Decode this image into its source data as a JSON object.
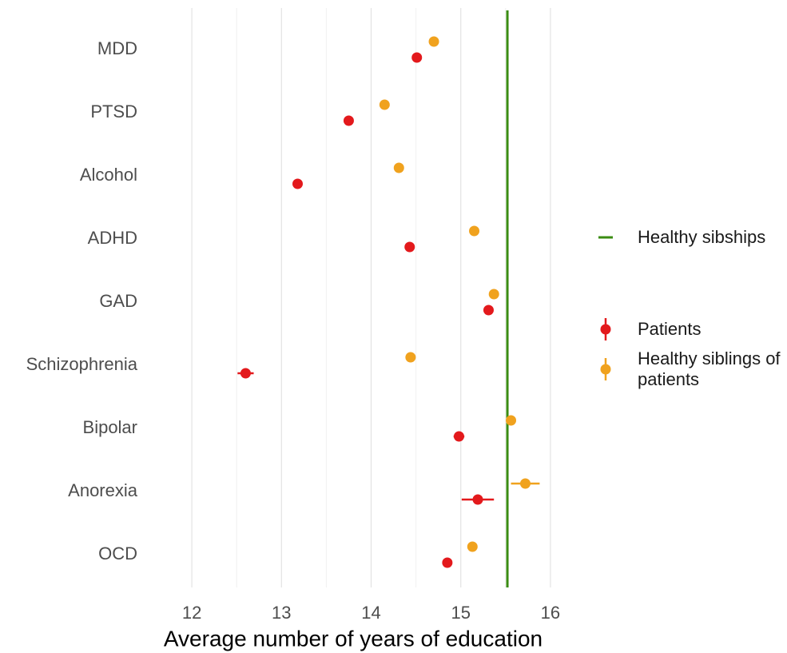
{
  "chart_data": {
    "type": "dot",
    "x_label": "Average number of years of education",
    "categories": [
      "MDD",
      "PTSD",
      "Alcohol",
      "ADHD",
      "GAD",
      "Schizophrenia",
      "Bipolar",
      "Anorexia",
      "OCD"
    ],
    "series": [
      {
        "name": "Patients",
        "color": "#e3191c",
        "values": [
          14.51,
          13.75,
          13.18,
          14.43,
          15.31,
          12.6,
          14.98,
          15.19,
          14.85
        ],
        "errors": [
          0.02,
          0.02,
          0.02,
          0.02,
          0.02,
          0.09,
          0.06,
          0.18,
          0.05
        ]
      },
      {
        "name": "Healthy siblings of patients",
        "color": "#f0a21e",
        "values": [
          14.7,
          14.15,
          14.31,
          15.15,
          15.37,
          14.44,
          15.56,
          15.72,
          15.13
        ],
        "errors": [
          0.02,
          0.02,
          0.02,
          0.02,
          0.02,
          0.02,
          0.02,
          0.16,
          0.02
        ]
      }
    ],
    "reference_line": {
      "name": "Healthy sibships",
      "value": 15.52,
      "color": "#3a8c12"
    },
    "xlim": [
      11.5,
      16.5
    ],
    "xticks": [
      12,
      13,
      14,
      15,
      16
    ],
    "minor_xticks": [
      12.5,
      13.5,
      14.5,
      15.5
    ],
    "grid": true,
    "legend": "right"
  }
}
